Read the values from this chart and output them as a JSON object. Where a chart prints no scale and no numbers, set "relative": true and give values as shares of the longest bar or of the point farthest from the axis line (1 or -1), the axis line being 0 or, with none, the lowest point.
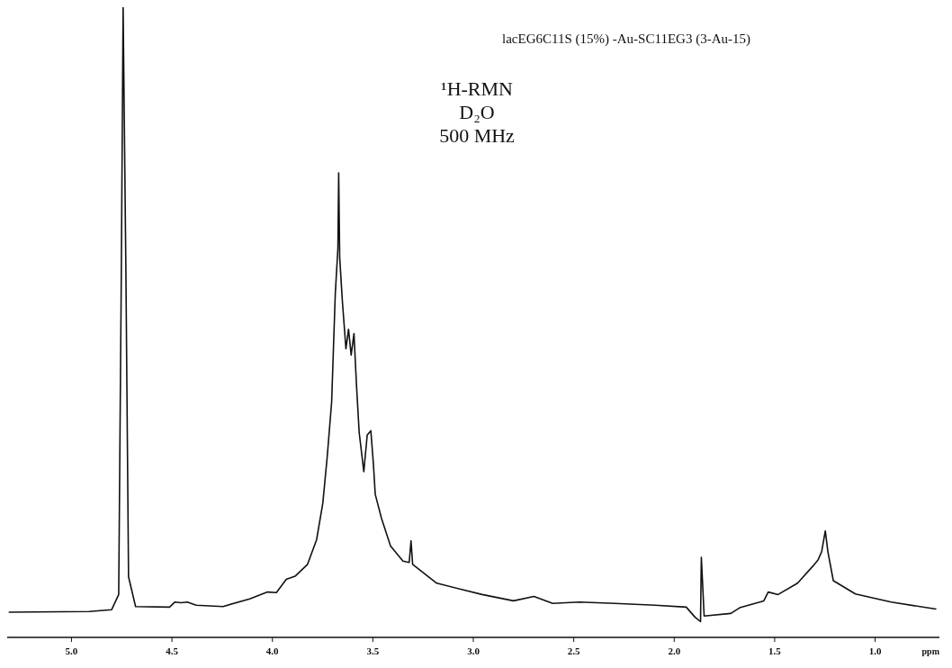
{
  "chart_data": {
    "type": "line",
    "title": "lacEG6C11S (15%) -Au-SC11EG3 (3-Au-15)",
    "annotations": [
      "¹H-RMN",
      "D₂O",
      "500 MHz"
    ],
    "xlabel": "ppm",
    "relative": true,
    "tick_labels": "x",
    "xlim": [
      5.32,
      0.68
    ],
    "xticks": [
      {
        "value": 5,
        "label": "5.0"
      },
      4.5,
      {
        "value": 4,
        "label": "4.0"
      },
      3.5,
      {
        "value": 3,
        "label": "3.0"
      },
      2.5,
      {
        "value": 2,
        "label": "2.0"
      },
      1.5,
      {
        "value": 1,
        "label": "1.0"
      }
    ],
    "series": [
      {
        "color": "#111111",
        "x": [
          5.31,
          4.911,
          4.8,
          4.765,
          4.752,
          4.743,
          4.729,
          4.716,
          4.681,
          4.512,
          4.486,
          4.455,
          4.424,
          4.379,
          4.246,
          4.113,
          4.024,
          3.98,
          3.931,
          3.887,
          3.825,
          3.78,
          3.749,
          3.727,
          3.705,
          3.687,
          3.674,
          3.67,
          3.665,
          3.652,
          3.634,
          3.621,
          3.608,
          3.594,
          3.581,
          3.568,
          3.545,
          3.528,
          3.51,
          3.497,
          3.488,
          3.457,
          3.412,
          3.35,
          3.319,
          3.31,
          3.302,
          3.182,
          2.956,
          2.8,
          2.698,
          2.605,
          2.472,
          2.295,
          2.095,
          1.94,
          1.896,
          1.869,
          1.865,
          1.851,
          1.718,
          1.674,
          1.554,
          1.532,
          1.483,
          1.386,
          1.31,
          1.284,
          1.266,
          1.248,
          1.235,
          1.208,
          1.098,
          0.92,
          0.698
        ],
        "values": [
          0.04,
          0.041,
          0.044,
          0.068,
          0.576,
          1.0,
          0.576,
          0.096,
          0.049,
          0.048,
          0.056,
          0.055,
          0.056,
          0.051,
          0.049,
          0.061,
          0.072,
          0.071,
          0.092,
          0.097,
          0.116,
          0.155,
          0.213,
          0.287,
          0.374,
          0.545,
          0.617,
          0.737,
          0.603,
          0.535,
          0.458,
          0.489,
          0.448,
          0.482,
          0.398,
          0.325,
          0.263,
          0.321,
          0.328,
          0.274,
          0.227,
          0.189,
          0.145,
          0.121,
          0.119,
          0.153,
          0.116,
          0.086,
          0.068,
          0.058,
          0.065,
          0.054,
          0.056,
          0.054,
          0.051,
          0.048,
          0.032,
          0.025,
          0.127,
          0.034,
          0.038,
          0.047,
          0.058,
          0.072,
          0.068,
          0.086,
          0.113,
          0.123,
          0.136,
          0.169,
          0.136,
          0.09,
          0.069,
          0.056,
          0.045
        ]
      }
    ]
  }
}
